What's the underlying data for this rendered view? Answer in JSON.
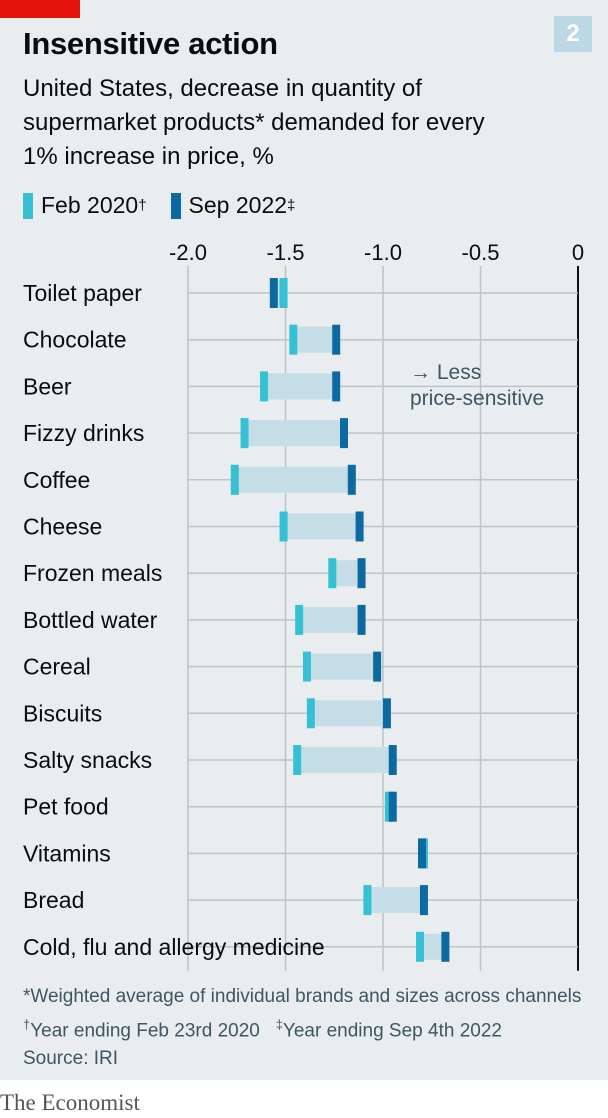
{
  "header": {
    "chart_number": "2",
    "title": "Insensitive action",
    "subtitle": "United States, decrease in quantity of supermarket products* demanded for every 1% increase in price, %"
  },
  "colors": {
    "feb": "#35c0d4",
    "sep": "#0d6aa0",
    "band": "#c5dde7",
    "grid": "#b9c4cb",
    "zero_line": "#111111",
    "brand_red": "#e3120b"
  },
  "legend": {
    "feb_label": "Feb 2020",
    "feb_mark": "†",
    "sep_label": "Sep 2022",
    "sep_mark": "‡"
  },
  "annotation": {
    "line1": "→ Less",
    "line2": "price-sensitive"
  },
  "chart_data": {
    "type": "dumbbell",
    "title": "Insensitive action",
    "xlim": [
      -2.0,
      0
    ],
    "x_ticks": [
      -2.0,
      -1.5,
      -1.0,
      -0.5,
      0
    ],
    "x_tick_labels": [
      "-2.0",
      "-1.5",
      "-1.0",
      "-0.5",
      "0"
    ],
    "grid": true,
    "legend_position": "top-left",
    "categories": [
      "Toilet paper",
      "Chocolate",
      "Beer",
      "Fizzy drinks",
      "Coffee",
      "Cheese",
      "Frozen meals",
      "Bottled water",
      "Cereal",
      "Biscuits",
      "Salty snacks",
      "Pet food",
      "Vitamins",
      "Bread",
      "Cold, flu and allergy medicine"
    ],
    "series": [
      {
        "name": "Feb 2020",
        "values": [
          -1.51,
          -1.46,
          -1.61,
          -1.71,
          -1.76,
          -1.51,
          -1.26,
          -1.43,
          -1.39,
          -1.37,
          -1.44,
          -0.97,
          -0.79,
          -1.08,
          -0.81
        ]
      },
      {
        "name": "Sep 2022",
        "values": [
          -1.56,
          -1.24,
          -1.24,
          -1.2,
          -1.16,
          -1.12,
          -1.11,
          -1.11,
          -1.03,
          -0.98,
          -0.95,
          -0.95,
          -0.8,
          -0.79,
          -0.68
        ]
      }
    ]
  },
  "footnotes": {
    "note1": "*Weighted average of individual brands and sizes across channels",
    "note2_mark": "†",
    "note2": "Year ending Feb 23rd 2020",
    "note3_mark": "‡",
    "note3": "Year ending Sep 4th 2022",
    "source": "Source: IRI"
  },
  "brand": {
    "logo_text": "The Economist"
  }
}
